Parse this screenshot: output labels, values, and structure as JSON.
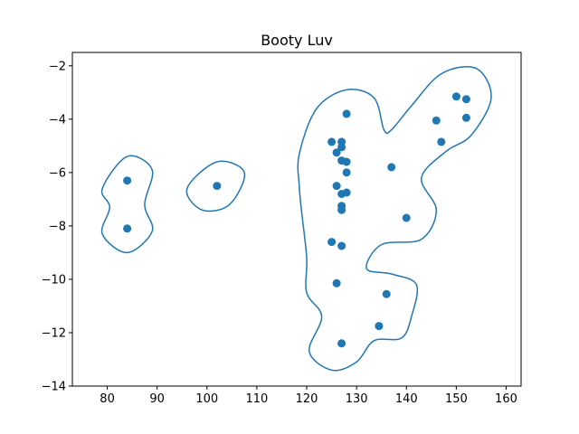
{
  "chart_data": {
    "type": "scatter",
    "title": "Booty Luv",
    "xlabel": "",
    "ylabel": "",
    "xlim": [
      73,
      163
    ],
    "ylim": [
      -14,
      -1.5
    ],
    "x_ticks": [
      80,
      90,
      100,
      110,
      120,
      130,
      140,
      150,
      160
    ],
    "y_ticks": [
      -14,
      -12,
      -10,
      -8,
      -6,
      -4,
      -2
    ],
    "grid": false,
    "legend": "none",
    "colors": {
      "points": "#1f77b4",
      "contours": "#1f77b4"
    },
    "points": [
      {
        "x": 84,
        "y": -6.3
      },
      {
        "x": 84,
        "y": -8.1
      },
      {
        "x": 102,
        "y": -6.5
      },
      {
        "x": 128,
        "y": -3.8
      },
      {
        "x": 125,
        "y": -4.85
      },
      {
        "x": 127,
        "y": -4.85
      },
      {
        "x": 127,
        "y": -5.05
      },
      {
        "x": 126,
        "y": -5.25
      },
      {
        "x": 127,
        "y": -5.55
      },
      {
        "x": 128,
        "y": -5.6
      },
      {
        "x": 128,
        "y": -6.0
      },
      {
        "x": 126,
        "y": -6.5
      },
      {
        "x": 127,
        "y": -6.8
      },
      {
        "x": 128,
        "y": -6.75
      },
      {
        "x": 127,
        "y": -7.25
      },
      {
        "x": 127,
        "y": -7.4
      },
      {
        "x": 125,
        "y": -8.6
      },
      {
        "x": 127,
        "y": -8.75
      },
      {
        "x": 126,
        "y": -10.15
      },
      {
        "x": 127,
        "y": -12.4
      },
      {
        "x": 136,
        "y": -10.55
      },
      {
        "x": 134.5,
        "y": -11.75
      },
      {
        "x": 137,
        "y": -5.8
      },
      {
        "x": 140,
        "y": -7.7
      },
      {
        "x": 146,
        "y": -4.05
      },
      {
        "x": 147,
        "y": -4.85
      },
      {
        "x": 150,
        "y": -3.15
      },
      {
        "x": 152,
        "y": -3.25
      },
      {
        "x": 152,
        "y": -3.95
      }
    ],
    "contours": [
      [
        [
          79,
          -6.6
        ],
        [
          84,
          -5.4
        ],
        [
          89,
          -5.9
        ],
        [
          87.5,
          -7.2
        ],
        [
          89,
          -8.2
        ],
        [
          84,
          -9.0
        ],
        [
          79,
          -8.3
        ],
        [
          80.5,
          -7.3
        ]
      ],
      [
        [
          96,
          -6.6
        ],
        [
          102,
          -5.6
        ],
        [
          107.5,
          -6.0
        ],
        [
          104.5,
          -7.2
        ],
        [
          99,
          -7.4
        ]
      ],
      [
        [
          118.5,
          -5.3
        ],
        [
          122,
          -3.6
        ],
        [
          128,
          -2.9
        ],
        [
          133.5,
          -3.2
        ],
        [
          135.5,
          -4.4
        ],
        [
          137,
          -4.4
        ],
        [
          141,
          -3.5
        ],
        [
          147,
          -2.3
        ],
        [
          154,
          -2.1
        ],
        [
          157,
          -3.2
        ],
        [
          153,
          -4.6
        ],
        [
          148,
          -5.2
        ],
        [
          143,
          -6.2
        ],
        [
          146,
          -7.4
        ],
        [
          143,
          -8.5
        ],
        [
          135,
          -8.7
        ],
        [
          132,
          -9.6
        ],
        [
          137,
          -9.8
        ],
        [
          142,
          -10.2
        ],
        [
          141,
          -11.4
        ],
        [
          139,
          -12.2
        ],
        [
          133.5,
          -12.3
        ],
        [
          130,
          -13.1
        ],
        [
          125,
          -13.4
        ],
        [
          120.5,
          -12.7
        ],
        [
          123,
          -11.4
        ],
        [
          120,
          -10.5
        ],
        [
          120,
          -9.2
        ],
        [
          119,
          -7.5
        ],
        [
          118.5,
          -6.5
        ]
      ]
    ]
  }
}
